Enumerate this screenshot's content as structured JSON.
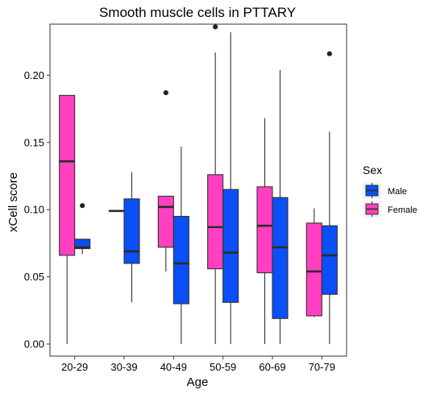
{
  "chart_data": {
    "type": "boxplot",
    "title": "Smooth muscle cells in PTTARY",
    "xlabel": "Age",
    "ylabel": "xCell score",
    "categories": [
      "20-29",
      "30-39",
      "40-49",
      "50-59",
      "60-69",
      "70-79"
    ],
    "ylim": [
      -0.009,
      0.238
    ],
    "yticks": [
      0.0,
      0.05,
      0.1,
      0.15,
      0.2
    ],
    "ytick_labels": [
      "0.00",
      "0.05",
      "0.10",
      "0.15",
      "0.20"
    ],
    "grid": false,
    "legend": {
      "title": "Sex",
      "placement": "right"
    },
    "series": [
      {
        "name": "Male",
        "color": "#0a4ff7",
        "boxes": [
          {
            "category": "20-29",
            "min": 0.067,
            "q1": 0.071,
            "median": 0.072,
            "q3": 0.078,
            "max": 0.078,
            "outliers": [
              0.103
            ]
          },
          {
            "category": "30-39",
            "min": 0.031,
            "q1": 0.06,
            "median": 0.069,
            "q3": 0.108,
            "max": 0.128,
            "outliers": []
          },
          {
            "category": "40-49",
            "min": 0.0,
            "q1": 0.03,
            "median": 0.06,
            "q3": 0.095,
            "max": 0.147,
            "outliers": []
          },
          {
            "category": "50-59",
            "min": 0.0,
            "q1": 0.031,
            "median": 0.068,
            "q3": 0.115,
            "max": 0.232,
            "outliers": []
          },
          {
            "category": "60-69",
            "min": 0.0,
            "q1": 0.019,
            "median": 0.072,
            "q3": 0.109,
            "max": 0.204,
            "outliers": []
          },
          {
            "category": "70-79",
            "min": 0.0,
            "q1": 0.037,
            "median": 0.066,
            "q3": 0.088,
            "max": 0.158,
            "outliers": [
              0.216
            ]
          }
        ]
      },
      {
        "name": "Female",
        "color": "#ff40c0",
        "boxes": [
          {
            "category": "20-29",
            "min": 0.0,
            "q1": 0.066,
            "median": 0.136,
            "q3": 0.185,
            "max": 0.185,
            "outliers": []
          },
          {
            "category": "30-39",
            "min": 0.099,
            "q1": 0.099,
            "median": 0.099,
            "q3": 0.099,
            "max": 0.099,
            "outliers": []
          },
          {
            "category": "40-49",
            "min": 0.054,
            "q1": 0.072,
            "median": 0.102,
            "q3": 0.11,
            "max": 0.11,
            "outliers": [
              0.187
            ]
          },
          {
            "category": "50-59",
            "min": 0.0,
            "q1": 0.056,
            "median": 0.087,
            "q3": 0.126,
            "max": 0.217,
            "outliers": [
              0.236
            ]
          },
          {
            "category": "60-69",
            "min": 0.0,
            "q1": 0.053,
            "median": 0.088,
            "q3": 0.117,
            "max": 0.168,
            "outliers": []
          },
          {
            "category": "70-79",
            "min": 0.02,
            "q1": 0.021,
            "median": 0.054,
            "q3": 0.09,
            "max": 0.101,
            "outliers": []
          }
        ]
      }
    ]
  }
}
